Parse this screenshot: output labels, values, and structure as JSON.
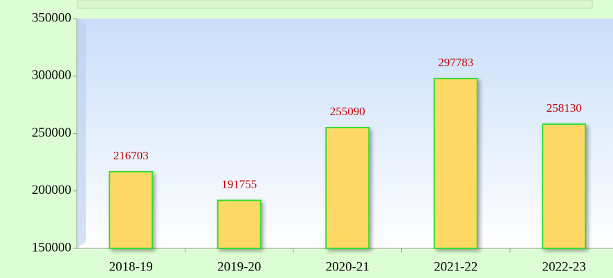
{
  "chart_data": {
    "type": "bar",
    "categories": [
      "2018-19",
      "2019-20",
      "2020-21",
      "2021-22",
      "2022-23"
    ],
    "values": [
      216703,
      191755,
      255090,
      297783,
      258130
    ],
    "color": "#ffd966",
    "edge_color": "#33dd33",
    "label_color": "#c00000",
    "ylim": [
      150000,
      350000
    ],
    "yticks": [
      150000,
      200000,
      250000,
      300000,
      350000
    ]
  }
}
